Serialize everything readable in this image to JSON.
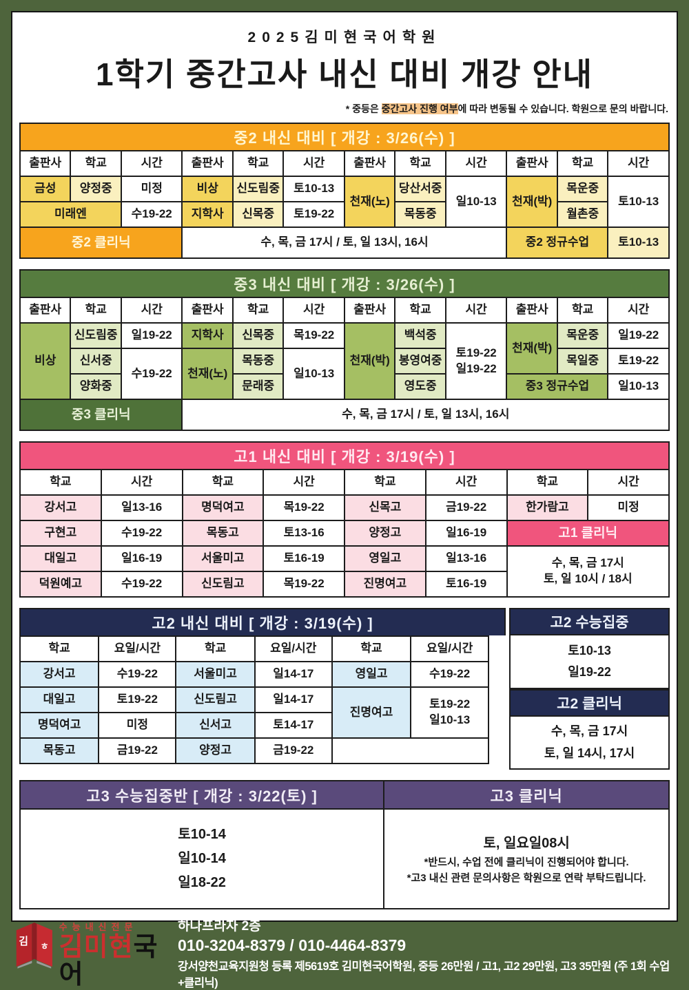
{
  "poster": {
    "academy_small_title": "2025김미현국어학원",
    "main_title": "1학기 중간고사 내신 대비 개강 안내",
    "note": {
      "prefix": "* 중등은 ",
      "highlight": "중간고사 진행 여부",
      "suffix": "에 따라 변동될 수 있습니다. 학원으로 문의 바랍니다."
    }
  },
  "colors": {
    "frame_green": "#4E643C",
    "jung2_orange": "#F7A41D",
    "jung2_cell_dark_yellow": "#F3D45C",
    "jung2_cell_light_yellow": "#FAF0BF",
    "jung3_header_green": "#567C3F",
    "jung3_cell_olive": "#A5BF63",
    "jung3_cell_light_green": "#E1EAC4",
    "go1_pink": "#F0557D",
    "go1_cell_light_pink": "#FBDDE3",
    "go2_navy": "#232C52",
    "go2_cell_light_blue": "#D8ECF7",
    "go3_purple": "#5A4A7B",
    "logo_red": "#CC2F2E",
    "note_highlight": "#F6C489"
  },
  "tables": {
    "jung2": {
      "title": "중2 내신 대비 [ 개강 : 3/26(수) ]",
      "grid": [
        [
          {
            "t": "출판사",
            "c": "hdr"
          },
          {
            "t": "학교",
            "c": "hdr"
          },
          {
            "t": "시간",
            "c": "hdr"
          },
          {
            "t": "출판사",
            "c": "hdr"
          },
          {
            "t": "학교",
            "c": "hdr"
          },
          {
            "t": "시간",
            "c": "hdr"
          },
          {
            "t": "출판사",
            "c": "hdr"
          },
          {
            "t": "학교",
            "c": "hdr"
          },
          {
            "t": "시간",
            "c": "hdr"
          },
          {
            "t": "출판사",
            "c": "hdr"
          },
          {
            "t": "학교",
            "c": "hdr"
          },
          {
            "t": "시간",
            "c": "hdr"
          }
        ],
        [
          {
            "t": "금성",
            "c": "y1"
          },
          {
            "t": "양정중",
            "c": "y2"
          },
          {
            "t": "미정",
            "c": "w"
          },
          {
            "t": "비상",
            "c": "y1"
          },
          {
            "t": "신도림중",
            "c": "y2"
          },
          {
            "t": "토10-13",
            "c": "w"
          },
          {
            "t": "천재(노)",
            "c": "y1",
            "rs": 2
          },
          {
            "t": "당산서중",
            "c": "y2"
          },
          {
            "t": "일10-13",
            "c": "w",
            "rs": 2
          },
          {
            "t": "천재(박)",
            "c": "y1",
            "rs": 2
          },
          {
            "t": "목운중",
            "c": "y2"
          },
          {
            "t": "토10-13",
            "c": "w",
            "rs": 2
          }
        ],
        [
          {
            "t": "미래엔",
            "c": "y1",
            "cs": 2
          },
          {
            "t": "수19-22",
            "c": "w"
          },
          {
            "t": "지학사",
            "c": "y1"
          },
          {
            "t": "신목중",
            "c": "y2"
          },
          {
            "t": "토19-22",
            "c": "w"
          },
          {
            "t": "목동중",
            "c": "y2"
          },
          {
            "t": "월촌중",
            "c": "y2"
          }
        ],
        [
          {
            "t": "중2 클리닉",
            "c": "bandO",
            "cs": 3,
            "n": "jung2-clinic-band"
          },
          {
            "t": "수, 목, 금 17시 / 토, 일 13시, 16시",
            "c": "w",
            "cs": 6,
            "n": "jung2-clinic-schedule"
          },
          {
            "t": "중2 정규수업",
            "c": "y1",
            "cs": 2,
            "n": "jung2-regular-class"
          },
          {
            "t": "토10-13",
            "c": "y2"
          }
        ]
      ]
    },
    "jung3": {
      "title": "중3 내신 대비 [ 개강 : 3/26(수) ]",
      "grid": [
        [
          {
            "t": "출판사",
            "c": "hdr"
          },
          {
            "t": "학교",
            "c": "hdr"
          },
          {
            "t": "시간",
            "c": "hdr"
          },
          {
            "t": "출판사",
            "c": "hdr"
          },
          {
            "t": "학교",
            "c": "hdr"
          },
          {
            "t": "시간",
            "c": "hdr"
          },
          {
            "t": "출판사",
            "c": "hdr"
          },
          {
            "t": "학교",
            "c": "hdr"
          },
          {
            "t": "시간",
            "c": "hdr"
          },
          {
            "t": "출판사",
            "c": "hdr"
          },
          {
            "t": "학교",
            "c": "hdr"
          },
          {
            "t": "시간",
            "c": "hdr"
          }
        ],
        [
          {
            "t": "비상",
            "c": "g1",
            "rs": 3
          },
          {
            "t": "신도림중",
            "c": "g2"
          },
          {
            "t": "일19-22",
            "c": "w"
          },
          {
            "t": "지학사",
            "c": "g1"
          },
          {
            "t": "신목중",
            "c": "g2"
          },
          {
            "t": "목19-22",
            "c": "w"
          },
          {
            "t": "천재(박)",
            "c": "g1",
            "rs": 3
          },
          {
            "t": "백석중",
            "c": "g2"
          },
          {
            "t": "토19-22\n일19-22",
            "c": "w",
            "rs": 3
          },
          {
            "t": "천재(박)",
            "c": "g1",
            "rs": 2
          },
          {
            "t": "목운중",
            "c": "g2"
          },
          {
            "t": "일19-22",
            "c": "w"
          }
        ],
        [
          {
            "t": "신서중",
            "c": "g2"
          },
          {
            "t": "수19-22",
            "c": "w",
            "rs": 2
          },
          {
            "t": "천재(노)",
            "c": "g1",
            "rs": 2
          },
          {
            "t": "목동중",
            "c": "g2"
          },
          {
            "t": "일10-13",
            "c": "w",
            "rs": 2
          },
          {
            "t": "봉영여중",
            "c": "g2"
          },
          {
            "t": "목일중",
            "c": "g2"
          },
          {
            "t": "토19-22",
            "c": "w"
          }
        ],
        [
          {
            "t": "양화중",
            "c": "g2"
          },
          {
            "t": "문래중",
            "c": "g2"
          },
          {
            "t": "영도중",
            "c": "g2"
          },
          {
            "t": "중3 정규수업",
            "c": "g1",
            "cs": 2,
            "n": "jung3-regular-class"
          },
          {
            "t": "일10-13",
            "c": "w"
          }
        ],
        [
          {
            "t": "중3 클리닉",
            "c": "bandG",
            "cs": 3,
            "n": "jung3-clinic-band"
          },
          {
            "t": "수, 목, 금 17시 / 토, 일 13시, 16시",
            "c": "w",
            "cs": 9,
            "n": "jung3-clinic-schedule"
          }
        ]
      ]
    },
    "go1": {
      "title": "고1 내신 대비 [ 개강 : 3/19(수) ]",
      "grid": [
        [
          {
            "t": "학교",
            "c": "hdr"
          },
          {
            "t": "시간",
            "c": "hdr"
          },
          {
            "t": "학교",
            "c": "hdr"
          },
          {
            "t": "시간",
            "c": "hdr"
          },
          {
            "t": "학교",
            "c": "hdr"
          },
          {
            "t": "시간",
            "c": "hdr"
          },
          {
            "t": "학교",
            "c": "hdr"
          },
          {
            "t": "시간",
            "c": "hdr"
          }
        ],
        [
          {
            "t": "강서고",
            "c": "p2"
          },
          {
            "t": "일13-16",
            "c": "w"
          },
          {
            "t": "명덕여고",
            "c": "p2"
          },
          {
            "t": "목19-22",
            "c": "w"
          },
          {
            "t": "신목고",
            "c": "p2"
          },
          {
            "t": "금19-22",
            "c": "w"
          },
          {
            "t": "한가람고",
            "c": "p2"
          },
          {
            "t": "미정",
            "c": "w"
          }
        ],
        [
          {
            "t": "구현고",
            "c": "p2"
          },
          {
            "t": "수19-22",
            "c": "w"
          },
          {
            "t": "목동고",
            "c": "p2"
          },
          {
            "t": "토13-16",
            "c": "w"
          },
          {
            "t": "양정고",
            "c": "p2"
          },
          {
            "t": "일16-19",
            "c": "w"
          },
          {
            "t": "고1 클리닉",
            "c": "bandP",
            "cs": 2,
            "n": "go1-clinic-band"
          }
        ],
        [
          {
            "t": "대일고",
            "c": "p2"
          },
          {
            "t": "일16-19",
            "c": "w"
          },
          {
            "t": "서울미고",
            "c": "p2"
          },
          {
            "t": "토16-19",
            "c": "w"
          },
          {
            "t": "영일고",
            "c": "p2"
          },
          {
            "t": "일13-16",
            "c": "w"
          },
          {
            "t": "수, 목, 금 17시\n토, 일 10시 / 18시",
            "c": "w",
            "cs": 2,
            "rs": 2,
            "n": "go1-clinic-schedule"
          }
        ],
        [
          {
            "t": "덕원예고",
            "c": "p2"
          },
          {
            "t": "수19-22",
            "c": "w"
          },
          {
            "t": "신도림고",
            "c": "p2"
          },
          {
            "t": "목19-22",
            "c": "w"
          },
          {
            "t": "진명여고",
            "c": "p2"
          },
          {
            "t": "토16-19",
            "c": "w"
          }
        ]
      ]
    },
    "go2": {
      "title": "고2 내신 대비 [ 개강 : 3/19(수) ]",
      "grid": [
        [
          {
            "t": "학교",
            "c": "hdr"
          },
          {
            "t": "요일/시간",
            "c": "hdr"
          },
          {
            "t": "학교",
            "c": "hdr"
          },
          {
            "t": "요일/시간",
            "c": "hdr"
          },
          {
            "t": "학교",
            "c": "hdr"
          },
          {
            "t": "요일/시간",
            "c": "hdr"
          }
        ],
        [
          {
            "t": "강서고",
            "c": "b2"
          },
          {
            "t": "수19-22",
            "c": "w"
          },
          {
            "t": "서울미고",
            "c": "b2"
          },
          {
            "t": "일14-17",
            "c": "w"
          },
          {
            "t": "영일고",
            "c": "b2"
          },
          {
            "t": "수19-22",
            "c": "w"
          }
        ],
        [
          {
            "t": "대일고",
            "c": "b2"
          },
          {
            "t": "토19-22",
            "c": "w"
          },
          {
            "t": "신도림고",
            "c": "b2"
          },
          {
            "t": "일14-17",
            "c": "w"
          },
          {
            "t": "진명여고",
            "c": "b2",
            "rs": 2
          },
          {
            "t": "토19-22\n일10-13",
            "c": "w",
            "rs": 2
          }
        ],
        [
          {
            "t": "명덕여고",
            "c": "b2"
          },
          {
            "t": "미정",
            "c": "w"
          },
          {
            "t": "신서고",
            "c": "b2"
          },
          {
            "t": "토14-17",
            "c": "w"
          }
        ],
        [
          {
            "t": "목동고",
            "c": "b2"
          },
          {
            "t": "금19-22",
            "c": "w"
          },
          {
            "t": "양정고",
            "c": "b2"
          },
          {
            "t": "금19-22",
            "c": "w"
          },
          {
            "t": "",
            "c": "empty",
            "cs": 2,
            "n": "empty-cell"
          }
        ]
      ]
    }
  },
  "go2_side": {
    "sooneung_title": "고2 수능집중",
    "sooneung_lines": [
      "토10-13",
      "일19-22"
    ],
    "clinic_title": "고2 클리닉",
    "clinic_lines": [
      "수, 목, 금 17시",
      "토, 일 14시, 17시"
    ]
  },
  "go3": {
    "left_title": "고3 수능집중반 [ 개강 : 3/22(토) ]",
    "left_lines": [
      "토10-14",
      "일10-14",
      "일18-22"
    ],
    "right_title": "고3 클리닉",
    "right_main": "토, 일요일08시",
    "right_notes": [
      "*반드시, 수업 전에 클리닉이 진행되어야 합니다.",
      "*고3 내신 관련 문의사항은 학원으로 연락 부탁드립니다."
    ]
  },
  "footer": {
    "logo": {
      "book_char1": "김",
      "book_char2": "ㅎ",
      "tagline": "수능내신전문",
      "name_red": "김미현",
      "name_black": "국어"
    },
    "address": "하나프라자 2층",
    "phones": "010-3204-8379 / 010-4464-8379",
    "registration": "강서양천교육지원청 등록 제5619호 김미현국어학원, 중등 26만원 / 고1, 고2 29만원, 고3 35만원 (주 1회 수업+클리닉)"
  }
}
